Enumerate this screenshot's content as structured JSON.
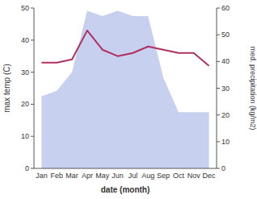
{
  "chart_data": {
    "type": "line",
    "categories": [
      "Jan",
      "Feb",
      "Mar",
      "Apr",
      "May",
      "Jun",
      "Jul",
      "Aug",
      "Sep",
      "Oct",
      "Nov",
      "Dec"
    ],
    "xlabel": "date (month)",
    "ylabel": "max temp (C)",
    "y2label": "med. precipitation (kg/m2)",
    "series": [
      {
        "type": "area",
        "axis": "y2",
        "color": "#c8d0f0",
        "values": [
          27,
          29,
          36,
          59,
          57,
          59,
          57,
          57,
          34,
          21,
          21,
          21
        ]
      },
      {
        "type": "line",
        "color": "#b03060",
        "values": [
          33,
          33,
          34,
          43,
          37,
          35,
          36,
          38,
          37,
          36,
          36,
          32
        ]
      }
    ],
    "ylim": [
      0,
      50
    ],
    "yticks": [
      0,
      10,
      20,
      30,
      40,
      50
    ],
    "y2lim": [
      0,
      60
    ],
    "y2ticks": [
      0,
      10,
      20,
      30,
      40,
      50,
      60
    ],
    "grid": false
  }
}
